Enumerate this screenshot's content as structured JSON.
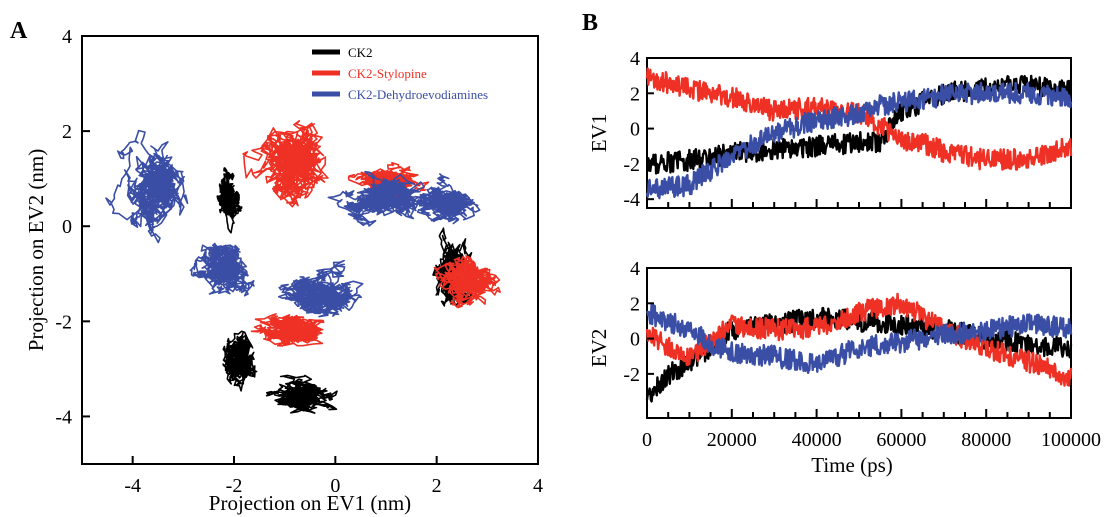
{
  "figure": {
    "panel_a_letter": "A",
    "panel_b_letter": "B"
  },
  "colors": {
    "ck2": "#000000",
    "stylopine": "#ee3124",
    "dehydro": "#3a4ea5"
  },
  "chart_data": [
    {
      "panel": "A",
      "type": "scatter",
      "render": "trajectory",
      "xlabel": "Projection on EV1 (nm)",
      "ylabel": "Projection on EV2 (nm)",
      "xlim": [
        -5,
        4
      ],
      "ylim": [
        -5,
        4
      ],
      "xticks": [
        -4,
        -2,
        0,
        2,
        4
      ],
      "yticks": [
        -4,
        -2,
        0,
        2,
        4
      ],
      "legend_position": "top-center",
      "series": [
        {
          "name": "CK2",
          "color": "#000000",
          "clusters": [
            {
              "center": [
                -1.9,
                -2.8
              ],
              "spread": [
                0.35,
                0.55
              ]
            },
            {
              "center": [
                -0.6,
                -3.6
              ],
              "spread": [
                0.55,
                0.3
              ]
            },
            {
              "center": [
                -2.1,
                0.6
              ],
              "spread": [
                0.18,
                0.4
              ]
            },
            {
              "center": [
                2.3,
                -1.0
              ],
              "spread": [
                0.3,
                0.6
              ]
            }
          ]
        },
        {
          "name": "CK2-Stylopine",
          "color": "#ee3124",
          "clusters": [
            {
              "center": [
                -0.8,
                1.4
              ],
              "spread": [
                0.75,
                0.8
              ]
            },
            {
              "center": [
                2.6,
                -1.1
              ],
              "spread": [
                0.5,
                0.5
              ]
            },
            {
              "center": [
                -1.0,
                -2.2
              ],
              "spread": [
                0.6,
                0.3
              ]
            },
            {
              "center": [
                1.0,
                0.9
              ],
              "spread": [
                0.6,
                0.3
              ]
            }
          ]
        },
        {
          "name": "CK2-Dehydroevodiamines",
          "color": "#3a4ea5",
          "clusters": [
            {
              "center": [
                -3.5,
                0.8
              ],
              "spread": [
                0.55,
                0.8
              ]
            },
            {
              "center": [
                -2.2,
                -0.9
              ],
              "spread": [
                0.55,
                0.5
              ]
            },
            {
              "center": [
                -0.3,
                -1.4
              ],
              "spread": [
                0.7,
                0.45
              ]
            },
            {
              "center": [
                0.9,
                0.6
              ],
              "spread": [
                0.7,
                0.45
              ]
            },
            {
              "center": [
                2.1,
                0.5
              ],
              "spread": [
                0.5,
                0.35
              ]
            }
          ]
        }
      ]
    },
    {
      "panel": "B-top",
      "type": "line",
      "xlabel": "",
      "ylabel": "EV1",
      "xlim": [
        0,
        100000
      ],
      "ylim": [
        -4.5,
        4
      ],
      "yticks": [
        -4,
        -2,
        0,
        2,
        4
      ],
      "series": [
        {
          "name": "CK2",
          "color": "#000000",
          "x": [
            0,
            10000,
            20000,
            30000,
            40000,
            50000,
            55000,
            60000,
            65000,
            70000,
            80000,
            90000,
            100000
          ],
          "y": [
            -2.0,
            -1.8,
            -1.4,
            -1.2,
            -1.0,
            -0.8,
            -0.8,
            1.0,
            1.5,
            2.0,
            2.3,
            2.5,
            2.2
          ]
        },
        {
          "name": "CK2-Stylopine",
          "color": "#ee3124",
          "x": [
            0,
            10000,
            20000,
            30000,
            40000,
            50000,
            55000,
            60000,
            65000,
            70000,
            80000,
            90000,
            100000
          ],
          "y": [
            3.0,
            2.2,
            1.8,
            1.0,
            1.2,
            0.8,
            0.2,
            -0.8,
            -0.8,
            -1.3,
            -1.8,
            -1.7,
            -1.0
          ]
        },
        {
          "name": "CK2-Dehydroevodiamines",
          "color": "#3a4ea5",
          "x": [
            0,
            10000,
            20000,
            30000,
            40000,
            50000,
            55000,
            60000,
            65000,
            70000,
            80000,
            90000,
            100000
          ],
          "y": [
            -3.5,
            -3.2,
            -1.5,
            -0.3,
            0.5,
            0.8,
            1.3,
            1.5,
            1.6,
            1.9,
            2.0,
            2.0,
            1.8
          ]
        }
      ]
    },
    {
      "panel": "B-bottom",
      "type": "line",
      "xlabel": "Time (ps)",
      "ylabel": "EV2",
      "xlim": [
        0,
        100000
      ],
      "ylim": [
        -4.5,
        4
      ],
      "yticks": [
        -2,
        0,
        2,
        4
      ],
      "xticks": [
        0,
        20000,
        40000,
        60000,
        80000,
        100000
      ],
      "series": [
        {
          "name": "CK2",
          "color": "#000000",
          "x": [
            0,
            5000,
            10000,
            15000,
            20000,
            30000,
            40000,
            50000,
            60000,
            70000,
            80000,
            90000,
            100000
          ],
          "y": [
            -3.5,
            -2.0,
            -1.5,
            -0.5,
            0.5,
            0.8,
            1.2,
            1.0,
            0.8,
            0.5,
            0.0,
            -0.3,
            -0.6
          ]
        },
        {
          "name": "CK2-Stylopine",
          "color": "#ee3124",
          "x": [
            0,
            5000,
            10000,
            15000,
            20000,
            30000,
            40000,
            50000,
            60000,
            70000,
            80000,
            90000,
            100000
          ],
          "y": [
            0.5,
            -0.5,
            -1.0,
            -0.2,
            0.8,
            0.5,
            0.6,
            1.5,
            2.0,
            0.5,
            -0.5,
            -1.3,
            -2.2
          ]
        },
        {
          "name": "CK2-Dehydroevodiamines",
          "color": "#3a4ea5",
          "x": [
            0,
            5000,
            10000,
            15000,
            20000,
            30000,
            40000,
            50000,
            60000,
            70000,
            80000,
            90000,
            100000
          ],
          "y": [
            1.5,
            1.0,
            0.5,
            -0.3,
            -0.8,
            -1.0,
            -1.5,
            -0.5,
            -0.2,
            0.2,
            0.5,
            0.8,
            0.6
          ]
        }
      ]
    }
  ]
}
